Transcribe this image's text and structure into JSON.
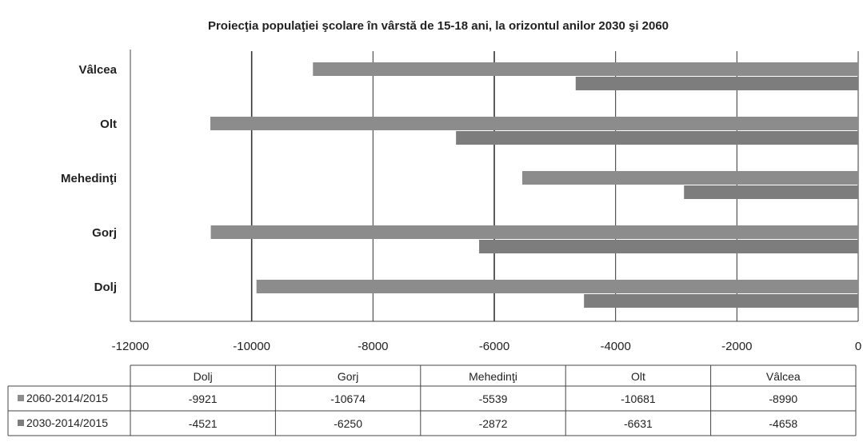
{
  "chart_data": {
    "type": "bar",
    "orientation": "horizontal",
    "title": "Proiecţia populaţiei şcolare în vârstă de 15-18 ani, la orizontul anilor 2030 şi 2060",
    "categories": [
      "Dolj",
      "Gorj",
      "Mehedinţi",
      "Olt",
      "Vâlcea"
    ],
    "series": [
      {
        "name": "2060-2014/2015",
        "values": [
          -9921,
          -10674,
          -5539,
          -10681,
          -8990
        ]
      },
      {
        "name": "2030-2014/2015",
        "values": [
          -4521,
          -6250,
          -2872,
          -6631,
          -4658
        ]
      }
    ],
    "xlim": [
      -12000,
      0
    ],
    "x_ticks": [
      -12000,
      -10000,
      -8000,
      -6000,
      -4000,
      -2000,
      0
    ],
    "grid": "vertical",
    "legend": "data table below chart",
    "colors": {
      "2060-2014/2015": "#8c8c8c",
      "2030-2014/2015": "#7d7d7d"
    }
  }
}
